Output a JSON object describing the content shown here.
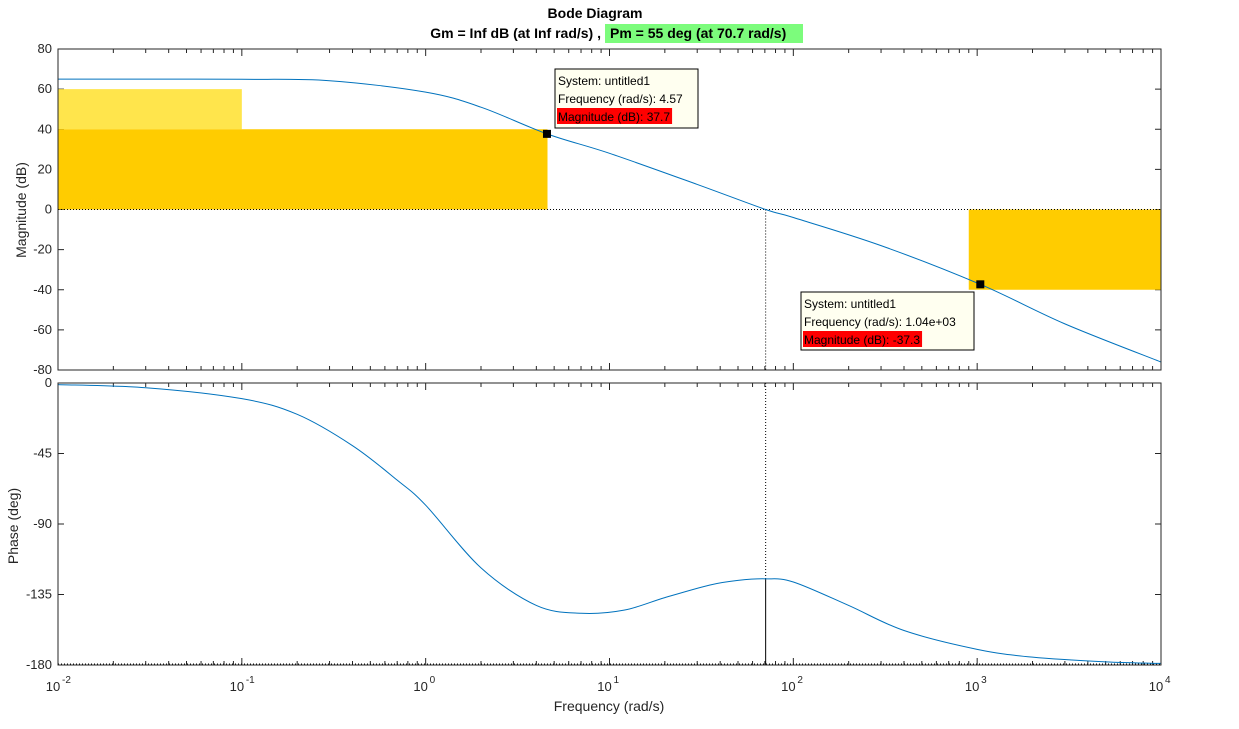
{
  "chart_data": {
    "type": "line",
    "title": "Bode Diagram",
    "subtitle_gm": "Gm = Inf dB (at Inf rad/s) ,",
    "subtitle_pm": "Pm = 55 deg (at 70.7 rad/s)",
    "xlabel": "Frequency  (rad/s)",
    "x_scale": "log",
    "xlim": [
      0.01,
      10000
    ],
    "x_ticks": [
      {
        "base": "10",
        "exp": "-2"
      },
      {
        "base": "10",
        "exp": "-1"
      },
      {
        "base": "10",
        "exp": "0"
      },
      {
        "base": "10",
        "exp": "1"
      },
      {
        "base": "10",
        "exp": "2"
      },
      {
        "base": "10",
        "exp": "3"
      },
      {
        "base": "10",
        "exp": "4"
      }
    ],
    "magnitude": {
      "ylabel": "Magnitude (dB)",
      "ylim": [
        -80,
        80
      ],
      "yticks": [
        "80",
        "60",
        "40",
        "20",
        "0",
        "-20",
        "-40",
        "-60",
        "-80"
      ],
      "series": [
        {
          "x": [
            0.01,
            0.03,
            0.1,
            0.3,
            1,
            2,
            4.57,
            10,
            30,
            70.7,
            100,
            300,
            1040,
            3000,
            10000
          ],
          "values": [
            65,
            65,
            64.9,
            64.2,
            58.5,
            51,
            37.7,
            28,
            12.5,
            0,
            -4,
            -18,
            -37.3,
            -57,
            -76
          ]
        }
      ],
      "regions": [
        {
          "x": [
            0.01,
            0.1
          ],
          "y": [
            40,
            60
          ],
          "color": "#FFE54C"
        },
        {
          "x": [
            0.01,
            4.6
          ],
          "y": [
            0,
            40
          ],
          "color": "#FFCC00"
        },
        {
          "x": [
            900,
            10000
          ],
          "y": [
            -40,
            0
          ],
          "color": "#FFCC00"
        }
      ],
      "datatips": [
        {
          "x": 4.57,
          "y": 37.7,
          "system": "System: untitled1",
          "frequency": "Frequency (rad/s): 4.57",
          "magnitude": "Magnitude (dB): 37.7"
        },
        {
          "x": 1040,
          "y": -37.3,
          "system": "System: untitled1",
          "frequency": "Frequency (rad/s): 1.04e+03",
          "magnitude": "Magnitude (dB): -37.3"
        }
      ]
    },
    "phase": {
      "ylabel": "Phase (deg)",
      "ylim": [
        -180,
        0
      ],
      "yticks": [
        "0",
        "-45",
        "-90",
        "-135",
        "-180"
      ],
      "series": [
        {
          "x": [
            0.01,
            0.03,
            0.1,
            0.2,
            0.4,
            0.7,
            1,
            2,
            4,
            7,
            12,
            20,
            35,
            50,
            70.7,
            100,
            200,
            400,
            1000,
            2000,
            5000,
            10000
          ],
          "values": [
            -1,
            -3,
            -10,
            -20,
            -40,
            -62,
            -78,
            -118,
            -142,
            -147,
            -145,
            -137,
            -129,
            -126,
            -125,
            -127,
            -142,
            -158,
            -170,
            -175,
            -178,
            -179
          ]
        }
      ],
      "margin_x": 70.7,
      "margin_y": -125
    },
    "colors": {
      "line": "#0072BD",
      "pm_highlight": "#7CFC7C",
      "tip_bg": "#FFFFF0",
      "tip_highlight": "#FF0000"
    }
  }
}
